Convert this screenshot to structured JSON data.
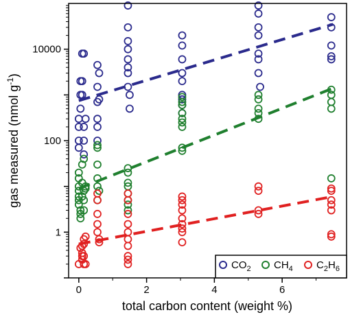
{
  "chart_data": {
    "type": "scatter",
    "xlabel": "total carbon content (weight %)",
    "ylabel": "gas measured (nmol g⁻¹)",
    "ylabel_main": "gas measured (nmol g",
    "ylabel_sup": "-1",
    "ylabel_close": ")",
    "y_scale": "log",
    "xlim": [
      -0.3,
      7.9
    ],
    "ylim": [
      0.1,
      100000
    ],
    "x_ticks": [
      0,
      2,
      4,
      6
    ],
    "x_tick_labels": [
      "0",
      "2",
      "4",
      "6"
    ],
    "y_ticks": [
      1,
      100,
      10000
    ],
    "y_tick_labels": [
      "1",
      "100",
      "10000"
    ],
    "legend_position": "bottom-right",
    "series": [
      {
        "name": "CO2",
        "label_main": "CO",
        "label_sub": "2",
        "color": "#2a2a8c",
        "points": [
          [
            0,
            300
          ],
          [
            0,
            200
          ],
          [
            0,
            100
          ],
          [
            0,
            70
          ],
          [
            0.05,
            500
          ],
          [
            0.05,
            1000
          ],
          [
            0.05,
            2000
          ],
          [
            0.1,
            8000
          ],
          [
            0.15,
            8000
          ],
          [
            0.1,
            2000
          ],
          [
            0.1,
            1000
          ],
          [
            0.15,
            200
          ],
          [
            0.15,
            100
          ],
          [
            0.15,
            50
          ],
          [
            0.2,
            300
          ],
          [
            0.55,
            4500
          ],
          [
            0.55,
            1500
          ],
          [
            0.55,
            700
          ],
          [
            0.55,
            300
          ],
          [
            0.55,
            200
          ],
          [
            0.55,
            100
          ],
          [
            0.6,
            800
          ],
          [
            0.6,
            3000
          ],
          [
            1.45,
            90000
          ],
          [
            1.45,
            30000
          ],
          [
            1.45,
            15000
          ],
          [
            1.45,
            10000
          ],
          [
            1.45,
            6000
          ],
          [
            1.45,
            4000
          ],
          [
            1.45,
            3000
          ],
          [
            1.45,
            1500
          ],
          [
            1.5,
            1000
          ],
          [
            1.5,
            500
          ],
          [
            3.05,
            20000
          ],
          [
            3.05,
            12000
          ],
          [
            3.05,
            6000
          ],
          [
            3.05,
            3000
          ],
          [
            3.05,
            2000
          ],
          [
            3.05,
            1000
          ],
          [
            3.05,
            800
          ],
          [
            3.05,
            600
          ],
          [
            3.05,
            400
          ],
          [
            5.3,
            90000
          ],
          [
            5.3,
            60000
          ],
          [
            5.3,
            30000
          ],
          [
            5.3,
            20000
          ],
          [
            5.3,
            8000
          ],
          [
            5.3,
            6000
          ],
          [
            5.3,
            3000
          ],
          [
            5.35,
            1500
          ],
          [
            7.45,
            50000
          ],
          [
            7.45,
            30000
          ],
          [
            7.45,
            12000
          ],
          [
            7.45,
            7000
          ],
          [
            7.45,
            6000
          ]
        ],
        "trend": [
          [
            0,
            750
          ],
          [
            7.5,
            35000
          ]
        ]
      },
      {
        "name": "CH4",
        "label_main": "CH",
        "label_sub": "4",
        "color": "#1f7f2e",
        "points": [
          [
            0,
            20
          ],
          [
            0,
            15
          ],
          [
            0,
            10
          ],
          [
            0,
            8
          ],
          [
            0,
            6
          ],
          [
            0,
            5
          ],
          [
            0,
            4
          ],
          [
            0.05,
            3
          ],
          [
            0.05,
            2.5
          ],
          [
            0.05,
            2
          ],
          [
            0.1,
            30
          ],
          [
            0.1,
            12
          ],
          [
            0.15,
            40
          ],
          [
            0.15,
            8
          ],
          [
            0.1,
            6
          ],
          [
            0.15,
            5
          ],
          [
            0.2,
            10
          ],
          [
            0.2,
            9
          ],
          [
            0.15,
            3
          ],
          [
            0.55,
            80
          ],
          [
            0.55,
            70
          ],
          [
            0.55,
            30
          ],
          [
            0.55,
            15
          ],
          [
            0.55,
            10
          ],
          [
            0.6,
            8
          ],
          [
            0.55,
            5
          ],
          [
            1.45,
            25
          ],
          [
            1.45,
            20
          ],
          [
            1.45,
            12
          ],
          [
            1.45,
            10
          ],
          [
            1.45,
            7
          ],
          [
            1.45,
            5
          ],
          [
            1.45,
            4
          ],
          [
            1.45,
            3
          ],
          [
            3.05,
            900
          ],
          [
            3.05,
            700
          ],
          [
            3.05,
            600
          ],
          [
            3.05,
            400
          ],
          [
            3.05,
            300
          ],
          [
            3.05,
            250
          ],
          [
            3.05,
            200
          ],
          [
            3.05,
            70
          ],
          [
            3.05,
            60
          ],
          [
            5.3,
            1000
          ],
          [
            5.3,
            800
          ],
          [
            5.3,
            500
          ],
          [
            5.3,
            400
          ],
          [
            5.3,
            300
          ],
          [
            7.45,
            1300
          ],
          [
            7.45,
            1000
          ],
          [
            7.45,
            700
          ],
          [
            7.45,
            500
          ],
          [
            7.45,
            15
          ]
        ],
        "trend": [
          [
            0,
            9
          ],
          [
            7.5,
            1400
          ]
        ]
      },
      {
        "name": "C2H6",
        "label_main": "C",
        "label_sub": "2",
        "label_mid": "H",
        "label_sub2": "6",
        "color": "#e02020",
        "points": [
          [
            0,
            0.2
          ],
          [
            0.05,
            0.45
          ],
          [
            0.1,
            0.3
          ],
          [
            0.1,
            0.35
          ],
          [
            0.1,
            0.5
          ],
          [
            0.15,
            0.55
          ],
          [
            0.15,
            0.3
          ],
          [
            0.1,
            0.25
          ],
          [
            0.15,
            0.2
          ],
          [
            0.2,
            0.2
          ],
          [
            0.15,
            0.7
          ],
          [
            0.2,
            0.8
          ],
          [
            0.55,
            7
          ],
          [
            0.55,
            5
          ],
          [
            0.55,
            2.5
          ],
          [
            0.55,
            1.5
          ],
          [
            0.55,
            1
          ],
          [
            0.6,
            0.7
          ],
          [
            0.6,
            0.6
          ],
          [
            1.45,
            7
          ],
          [
            1.45,
            5
          ],
          [
            1.45,
            2.5
          ],
          [
            1.45,
            1.5
          ],
          [
            1.45,
            1
          ],
          [
            1.45,
            0.7
          ],
          [
            1.45,
            0.5
          ],
          [
            1.45,
            0.3
          ],
          [
            1.45,
            0.25
          ],
          [
            1.45,
            0.2
          ],
          [
            3.05,
            6
          ],
          [
            3.05,
            5
          ],
          [
            3.05,
            4
          ],
          [
            3.05,
            3
          ],
          [
            3.05,
            2
          ],
          [
            3.05,
            1.5
          ],
          [
            3.05,
            1.2
          ],
          [
            3.05,
            1
          ],
          [
            3.05,
            0.6
          ],
          [
            5.3,
            10
          ],
          [
            5.3,
            8
          ],
          [
            5.3,
            3
          ],
          [
            5.3,
            2.5
          ],
          [
            7.45,
            9
          ],
          [
            7.45,
            8
          ],
          [
            7.45,
            5
          ],
          [
            7.45,
            4
          ],
          [
            7.45,
            3
          ],
          [
            7.45,
            0.8
          ],
          [
            7.45,
            0.9
          ]
        ],
        "trend": [
          [
            0,
            0.55
          ],
          [
            7.5,
            6
          ]
        ]
      }
    ]
  }
}
